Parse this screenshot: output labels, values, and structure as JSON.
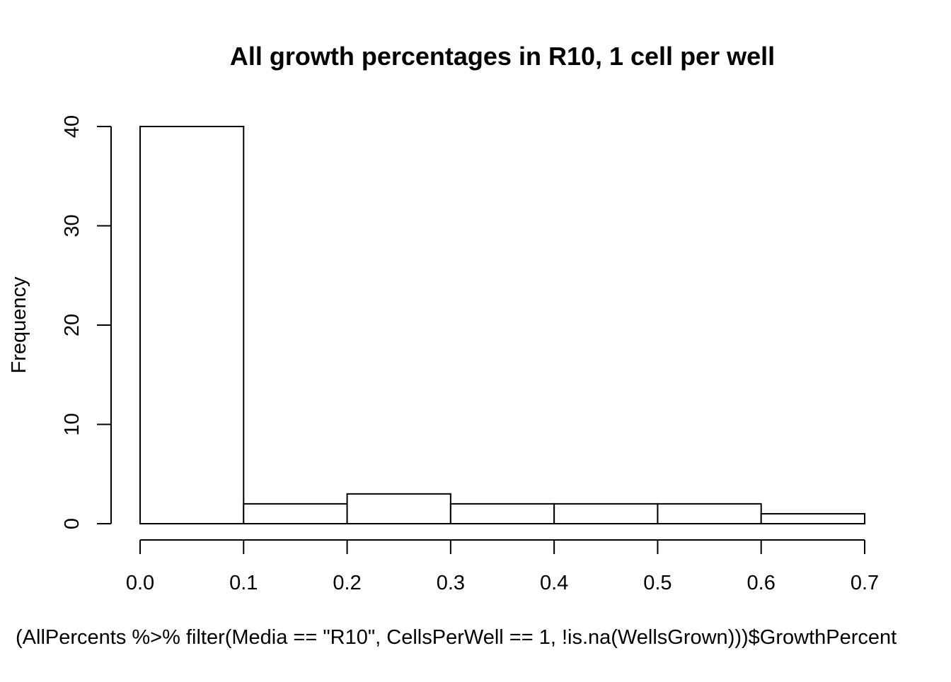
{
  "chart_data": {
    "type": "bar",
    "title": "All growth percentages in R10, 1 cell per well",
    "xlabel": "(AllPercents %>% filter(Media == \"R10\", CellsPerWell == 1, !is.na(WellsGrown)))$GrowthPercent",
    "ylabel": "Frequency",
    "bins": [
      {
        "x0": 0.0,
        "x1": 0.1,
        "count": 40
      },
      {
        "x0": 0.1,
        "x1": 0.2,
        "count": 2
      },
      {
        "x0": 0.2,
        "x1": 0.3,
        "count": 3
      },
      {
        "x0": 0.3,
        "x1": 0.4,
        "count": 2
      },
      {
        "x0": 0.4,
        "x1": 0.5,
        "count": 2
      },
      {
        "x0": 0.5,
        "x1": 0.6,
        "count": 2
      },
      {
        "x0": 0.6,
        "x1": 0.7,
        "count": 1
      }
    ],
    "xlim": [
      0.0,
      0.7
    ],
    "ylim": [
      0,
      40
    ],
    "x_ticks": [
      "0.0",
      "0.1",
      "0.2",
      "0.3",
      "0.4",
      "0.5",
      "0.6",
      "0.7"
    ],
    "y_ticks": [
      "0",
      "10",
      "20",
      "30",
      "40"
    ],
    "grid": false,
    "legend": "none",
    "bar_fill": "#ffffff",
    "bar_stroke": "#000000"
  }
}
